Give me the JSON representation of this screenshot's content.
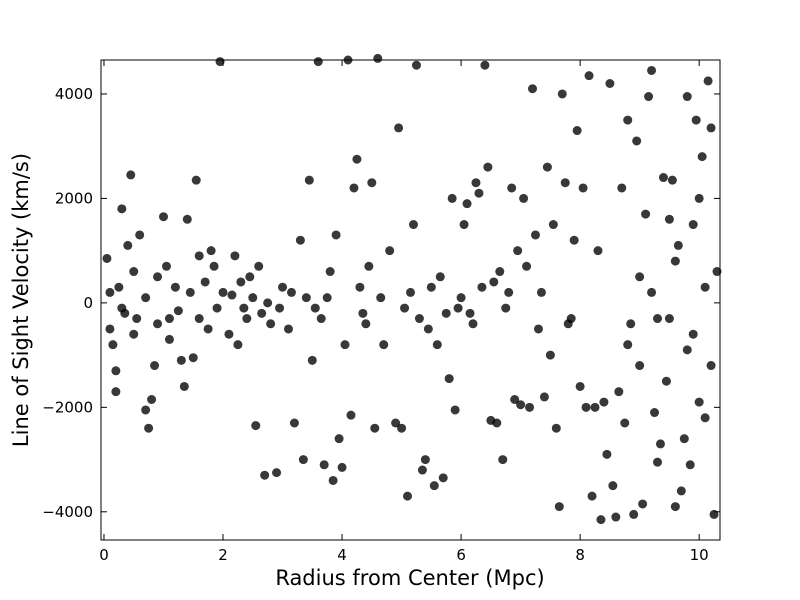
{
  "chart_data": {
    "type": "scatter",
    "xlabel": "Radius from Center (Mpc)",
    "ylabel": "Line of Sight Velocity (km/s)",
    "xlim": [
      -0.05,
      10.35
    ],
    "ylim": [
      -4540,
      4650
    ],
    "xticks": [
      0,
      2,
      4,
      6,
      8,
      10
    ],
    "yticks": [
      {
        "value": -4000,
        "label": "−4000"
      },
      {
        "value": -2000,
        "label": "−2000"
      },
      0,
      2000,
      4000
    ],
    "color": "#000000",
    "x": [
      0.05,
      0.1,
      0.15,
      0.2,
      0.2,
      0.25,
      0.3,
      0.35,
      0.4,
      0.45,
      0.5,
      0.55,
      0.6,
      0.7,
      0.75,
      0.8,
      0.85,
      0.9,
      1.0,
      1.05,
      1.1,
      1.2,
      1.3,
      1.35,
      1.4,
      1.45,
      1.5,
      1.55,
      1.6,
      1.7,
      1.8,
      1.9,
      1.95,
      0.1,
      0.3,
      0.5,
      0.7,
      0.9,
      1.1,
      1.25,
      1.6,
      1.75,
      1.85,
      2.0,
      2.1,
      2.2,
      2.25,
      2.3,
      2.4,
      2.5,
      2.55,
      2.6,
      2.7,
      2.8,
      2.9,
      3.0,
      3.1,
      3.2,
      3.3,
      3.35,
      3.4,
      3.45,
      3.5,
      3.6,
      3.65,
      3.7,
      3.8,
      3.85,
      3.9,
      3.95,
      4.0,
      4.05,
      4.1,
      4.15,
      4.2,
      4.25,
      4.3,
      4.4,
      4.5,
      4.55,
      4.6,
      2.15,
      2.35,
      2.45,
      2.65,
      2.75,
      2.95,
      3.15,
      3.55,
      3.75,
      4.35,
      4.45,
      4.65,
      4.7,
      4.8,
      4.9,
      4.95,
      5.0,
      5.05,
      5.1,
      5.2,
      5.25,
      5.3,
      5.35,
      5.4,
      5.5,
      5.55,
      5.6,
      5.7,
      5.75,
      5.8,
      5.85,
      5.9,
      6.0,
      6.05,
      6.1,
      6.2,
      6.25,
      6.3,
      6.4,
      6.45,
      6.5,
      6.55,
      6.6,
      6.7,
      6.8,
      6.85,
      6.9,
      6.95,
      7.0,
      5.15,
      5.45,
      5.65,
      5.95,
      6.15,
      6.35,
      6.75,
      6.65,
      7.05,
      7.1,
      7.15,
      7.2,
      7.25,
      7.3,
      7.4,
      7.45,
      7.5,
      7.55,
      7.6,
      7.65,
      7.7,
      7.75,
      7.8,
      7.9,
      7.95,
      8.0,
      8.05,
      8.1,
      8.15,
      8.2,
      8.25,
      8.3,
      8.35,
      8.4,
      8.45,
      8.5,
      7.35,
      7.85,
      8.55,
      8.6,
      8.65,
      8.7,
      8.75,
      8.8,
      8.85,
      8.9,
      8.95,
      9.0,
      9.05,
      9.1,
      9.15,
      9.2,
      9.25,
      9.3,
      9.35,
      9.4,
      9.45,
      9.5,
      9.55,
      9.6,
      9.65,
      9.7,
      9.75,
      9.8,
      9.85,
      9.9,
      9.95,
      10.0,
      10.05,
      10.1,
      10.15,
      10.2,
      10.25,
      10.3,
      9.0,
      9.3,
      9.6,
      9.9,
      10.1,
      10.2,
      8.8,
      9.2,
      9.5,
      9.8,
      10.0
    ],
    "values": [
      850,
      -500,
      -800,
      -1300,
      -1700,
      300,
      1800,
      -200,
      1100,
      2450,
      600,
      -300,
      1300,
      -2050,
      -2400,
      -1850,
      -1200,
      -400,
      1650,
      700,
      -700,
      300,
      -1100,
      -1600,
      1600,
      200,
      -1050,
      2350,
      900,
      400,
      1000,
      -100,
      4620,
      200,
      -100,
      -600,
      100,
      500,
      -300,
      -150,
      -300,
      -500,
      700,
      200,
      -600,
      900,
      -800,
      400,
      -300,
      100,
      -2350,
      700,
      -3300,
      -400,
      -3250,
      300,
      -500,
      -2300,
      1200,
      -3000,
      100,
      2350,
      -1100,
      4620,
      -300,
      -3100,
      600,
      -3400,
      1300,
      -2600,
      -3150,
      -800,
      4650,
      -2150,
      2200,
      2750,
      300,
      -400,
      2300,
      -2400,
      4680,
      150,
      -100,
      500,
      -200,
      0,
      -100,
      200,
      -100,
      100,
      -200,
      700,
      100,
      -800,
      1000,
      -2300,
      3350,
      -2400,
      -100,
      -3700,
      1500,
      4550,
      -300,
      -3200,
      -3000,
      300,
      -3500,
      -800,
      -3350,
      -200,
      -1450,
      2000,
      -2050,
      100,
      1500,
      1900,
      -400,
      2300,
      2100,
      4550,
      2600,
      -2250,
      400,
      -2300,
      -3000,
      200,
      2200,
      -1850,
      1000,
      -1950,
      200,
      -500,
      500,
      -100,
      -200,
      300,
      -100,
      600,
      2000,
      700,
      -2000,
      4100,
      1300,
      -500,
      -1800,
      2600,
      -1000,
      1500,
      -2400,
      -3900,
      4000,
      2300,
      -400,
      1200,
      3300,
      -1600,
      2200,
      -2000,
      4350,
      -3700,
      -2000,
      1000,
      -4150,
      -1900,
      -2900,
      4200,
      200,
      -300,
      -3500,
      -4100,
      -1700,
      2200,
      -2300,
      3500,
      -400,
      -4050,
      3100,
      -1200,
      -3850,
      1700,
      3950,
      4450,
      -2100,
      -3050,
      -2700,
      2400,
      -1500,
      -300,
      2350,
      -3900,
      1100,
      -3600,
      -2600,
      3950,
      -3100,
      1500,
      3500,
      -1900,
      2800,
      -2200,
      4250,
      3350,
      -4050,
      600,
      500,
      -300,
      800,
      -600,
      300,
      -1200,
      -800,
      200,
      1600,
      -900,
      2000
    ]
  }
}
